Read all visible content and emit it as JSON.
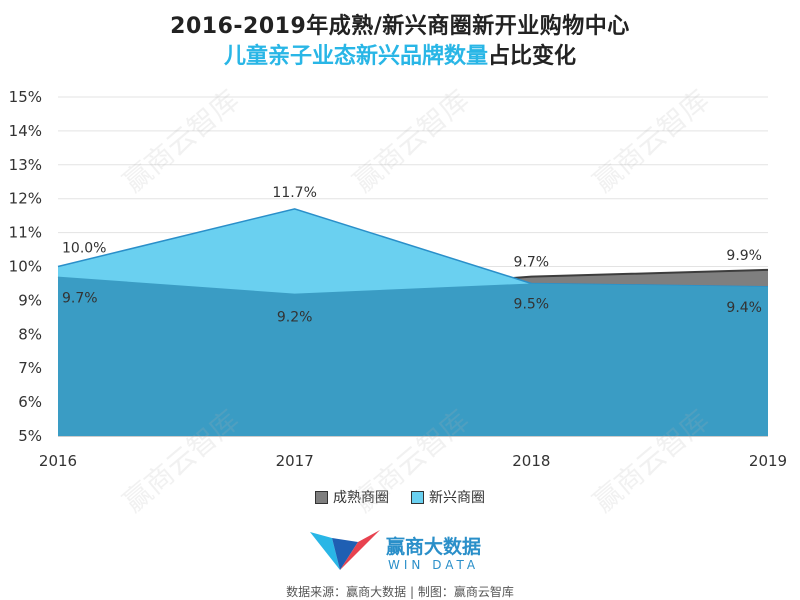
{
  "title_line1": "2016-2019年成熟/新兴商圈新开业购物中心",
  "title_line2_highlight": "儿童亲子业态新兴品牌数量",
  "title_line2_rest": "占比变化",
  "legend": {
    "mature_label": "成熟商圈",
    "emerging_label": "新兴商圈"
  },
  "logo": {
    "name": "赢商大数据",
    "sub": "WIN DATA"
  },
  "source": "数据来源：赢商大数据 | 制图：赢商云智库",
  "watermark": "赢商云智库",
  "colors": {
    "mature": "#3d3d3d",
    "mature_fill": "#7f7f7f",
    "emerging_front": "#3a9cc4",
    "emerging_back": "#6ad0f0",
    "title_highlight": "#29b6e6"
  },
  "chart_data": {
    "type": "area",
    "x": [
      "2016",
      "2017",
      "2018",
      "2019"
    ],
    "series": [
      {
        "name": "成熟商圈",
        "values": [
          9.7,
          9.2,
          9.7,
          9.9
        ],
        "labels": [
          "9.7%",
          "9.2%",
          "9.7%",
          "9.9%"
        ]
      },
      {
        "name": "新兴商圈",
        "values": [
          10.0,
          11.7,
          9.5,
          9.4
        ],
        "labels": [
          "10.0%",
          "11.7%",
          "9.5%",
          "9.4%"
        ]
      }
    ],
    "ylim": [
      5,
      15
    ],
    "yticks": [
      "5%",
      "6%",
      "7%",
      "8%",
      "9%",
      "10%",
      "11%",
      "12%",
      "13%",
      "14%",
      "15%"
    ],
    "grid": true,
    "legend_position": "bottom"
  }
}
